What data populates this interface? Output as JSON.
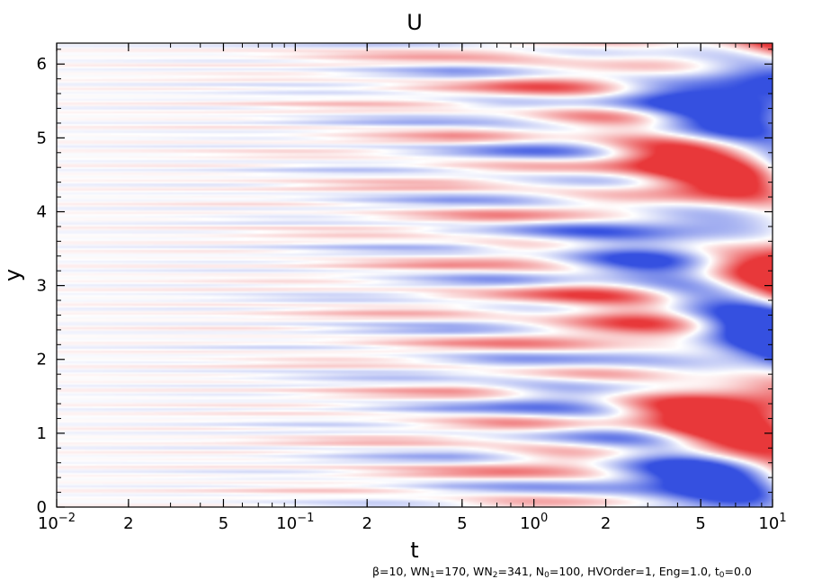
{
  "chart_data": {
    "type": "heatmap",
    "title": "U",
    "xlabel": "t",
    "ylabel": "y",
    "x_scale": "log",
    "xlim": [
      0.01,
      10
    ],
    "ylim": [
      0,
      6.283
    ],
    "x_ticks": [
      {
        "value": 0.01,
        "mantissa": "10",
        "exponent": "−2"
      },
      {
        "value": 0.02,
        "mantissa": "2",
        "exponent": ""
      },
      {
        "value": 0.05,
        "mantissa": "5",
        "exponent": ""
      },
      {
        "value": 0.1,
        "mantissa": "10",
        "exponent": "−1"
      },
      {
        "value": 0.2,
        "mantissa": "2",
        "exponent": ""
      },
      {
        "value": 0.5,
        "mantissa": "5",
        "exponent": ""
      },
      {
        "value": 1,
        "mantissa": "10",
        "exponent": "0"
      },
      {
        "value": 2,
        "mantissa": "2",
        "exponent": ""
      },
      {
        "value": 5,
        "mantissa": "5",
        "exponent": ""
      },
      {
        "value": 10,
        "mantissa": "10",
        "exponent": "1"
      }
    ],
    "y_ticks": [
      {
        "value": 0,
        "label": "0"
      },
      {
        "value": 1,
        "label": "1"
      },
      {
        "value": 2,
        "label": "2"
      },
      {
        "value": 3,
        "label": "3"
      },
      {
        "value": 4,
        "label": "4"
      },
      {
        "value": 5,
        "label": "5"
      },
      {
        "value": 6,
        "label": "6"
      }
    ],
    "colormap": {
      "negative": "#3550e0",
      "zero": "#ffffff",
      "positive": "#e8383a"
    },
    "grid": false,
    "legend": "none"
  },
  "footnote": {
    "beta": "β=10, ",
    "wn1_a": "WN",
    "wn1_sub": "1",
    "wn1_b": "=170, ",
    "wn2_a": "WN",
    "wn2_sub": "2",
    "wn2_b": "=341, ",
    "n0_a": "N",
    "n0_sub": "0",
    "n0_b": "=100, ",
    "rest_a": "HVOrder=1, Eng=1.0, t",
    "t0_sub": "0",
    "rest_b": "=0.0"
  }
}
